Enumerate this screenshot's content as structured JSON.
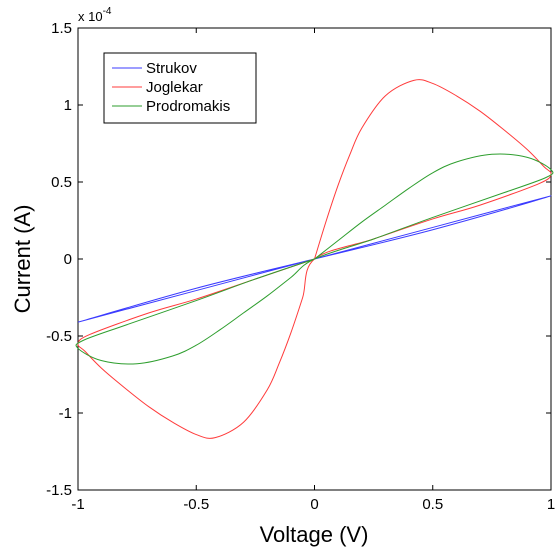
{
  "chart_data": {
    "type": "line",
    "xlabel": "Voltage (V)",
    "ylabel": "Current (A)",
    "y_exponent_label": "x 10",
    "y_exponent_power": "-4",
    "xlim": [
      -1,
      1
    ],
    "ylim": [
      -1.5,
      1.5
    ],
    "y_scale_factor": 0.0001,
    "x_ticks": [
      -1,
      -0.5,
      0,
      0.5,
      1
    ],
    "x_tick_labels": [
      "-1",
      "-0.5",
      "0",
      "0.5",
      "1"
    ],
    "y_ticks": [
      -1.5,
      -1,
      -0.5,
      0,
      0.5,
      1,
      1.5
    ],
    "y_tick_labels": [
      "-1.5",
      "-1",
      "-0.5",
      "0",
      "0.5",
      "1",
      "1.5"
    ],
    "grid": false,
    "legend_position": "top-left",
    "series": [
      {
        "name": "Strukov",
        "color": "#3b3bff",
        "points": [
          [
            -1,
            -0.41
          ],
          [
            -0.5,
            -0.205
          ],
          [
            0,
            0
          ],
          [
            0.5,
            0.205
          ],
          [
            1,
            0.41
          ],
          [
            0.5,
            0.19
          ],
          [
            0,
            0
          ],
          [
            -0.5,
            -0.19
          ],
          [
            -1,
            -0.41
          ]
        ]
      },
      {
        "name": "Joglekar",
        "color": "#ff3b3b",
        "points": [
          [
            0,
            0
          ],
          [
            0.05,
            0.25
          ],
          [
            0.1,
            0.48
          ],
          [
            0.15,
            0.68
          ],
          [
            0.2,
            0.85
          ],
          [
            0.3,
            1.06
          ],
          [
            0.42,
            1.16
          ],
          [
            0.5,
            1.14
          ],
          [
            0.6,
            1.06
          ],
          [
            0.7,
            0.96
          ],
          [
            0.8,
            0.84
          ],
          [
            0.9,
            0.71
          ],
          [
            0.97,
            0.6
          ],
          [
            1,
            0.55
          ],
          [
            0.95,
            0.49
          ],
          [
            0.7,
            0.35
          ],
          [
            0.5,
            0.26
          ],
          [
            0.25,
            0.13
          ],
          [
            0,
            0
          ],
          [
            -0.05,
            -0.25
          ],
          [
            -0.1,
            -0.48
          ],
          [
            -0.15,
            -0.68
          ],
          [
            -0.2,
            -0.85
          ],
          [
            -0.3,
            -1.06
          ],
          [
            -0.42,
            -1.16
          ],
          [
            -0.5,
            -1.14
          ],
          [
            -0.6,
            -1.06
          ],
          [
            -0.7,
            -0.96
          ],
          [
            -0.8,
            -0.84
          ],
          [
            -0.9,
            -0.71
          ],
          [
            -0.97,
            -0.6
          ],
          [
            -1,
            -0.55
          ],
          [
            -0.95,
            -0.49
          ],
          [
            -0.7,
            -0.35
          ],
          [
            -0.5,
            -0.26
          ],
          [
            -0.25,
            -0.13
          ],
          [
            0,
            0
          ]
        ]
      },
      {
        "name": "Prodromakis",
        "color": "#2e9e2e",
        "points": [
          [
            0,
            0
          ],
          [
            0.1,
            0.12
          ],
          [
            0.2,
            0.24
          ],
          [
            0.3,
            0.35
          ],
          [
            0.4,
            0.46
          ],
          [
            0.5,
            0.56
          ],
          [
            0.6,
            0.63
          ],
          [
            0.75,
            0.68
          ],
          [
            0.9,
            0.66
          ],
          [
            1,
            0.58
          ],
          [
            0.98,
            0.53
          ],
          [
            0.8,
            0.43
          ],
          [
            0.5,
            0.27
          ],
          [
            0.25,
            0.13
          ],
          [
            0,
            0
          ],
          [
            -0.1,
            -0.12
          ],
          [
            -0.2,
            -0.24
          ],
          [
            -0.3,
            -0.35
          ],
          [
            -0.4,
            -0.46
          ],
          [
            -0.5,
            -0.56
          ],
          [
            -0.6,
            -0.63
          ],
          [
            -0.75,
            -0.68
          ],
          [
            -0.9,
            -0.66
          ],
          [
            -1,
            -0.58
          ],
          [
            -0.98,
            -0.53
          ],
          [
            -0.8,
            -0.43
          ],
          [
            -0.5,
            -0.27
          ],
          [
            -0.25,
            -0.13
          ],
          [
            0,
            0
          ]
        ]
      }
    ]
  }
}
